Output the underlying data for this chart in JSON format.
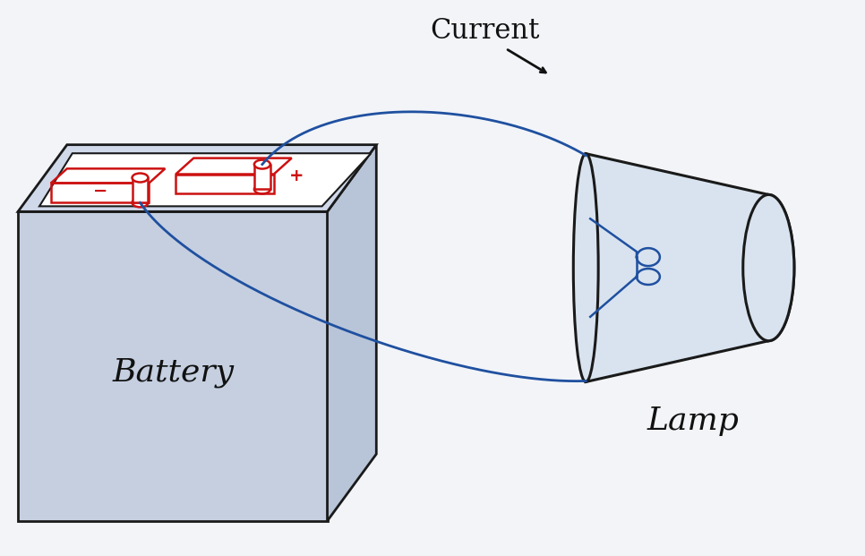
{
  "bg_color": "#f2f4f8",
  "battery_color_front": "#c5cfe0",
  "battery_color_top": "#d0d9ea",
  "battery_color_right": "#b8c4d8",
  "battery_outline": "#1a1a1a",
  "lamp_color": "#d8e3ef",
  "lamp_outline": "#1a1a1a",
  "red_color": "#cc1111",
  "blue_color": "#1f50a0",
  "text_color": "#111111",
  "title_text": "Current",
  "battery_label": "Battery",
  "lamp_label": "Lamp",
  "title_fontsize": 22,
  "label_fontsize": 26
}
